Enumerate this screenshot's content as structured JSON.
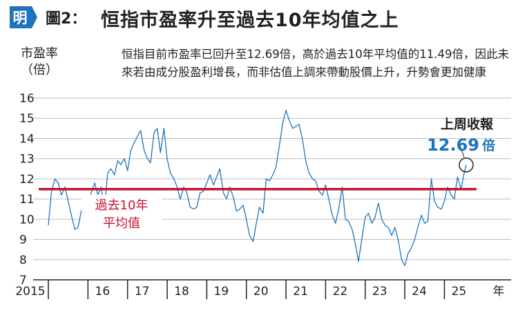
{
  "header": {
    "logo_text": "明",
    "figure_label": "圖2：",
    "title": "恒指市盈率升至過去10年均值之上",
    "accent_color": "#1d74bc"
  },
  "chart_data": {
    "type": "line",
    "ylabel": [
      "市盈率",
      "（倍）"
    ],
    "note": "恒指目前市盈率已回升至12.69倍，高於過去10年平均值的11.49倍，因此未來若由成分股盈利增長，而非估值上調來帶動股價上升，升勢會更加健康",
    "ylim": [
      7,
      16
    ],
    "yticks": [
      7,
      8,
      9,
      10,
      11,
      12,
      13,
      14,
      15,
      16
    ],
    "xlim": [
      2015,
      2026.3
    ],
    "xticks": [
      {
        "label": "2015",
        "value": 2015
      },
      {
        "label": "16",
        "value": 2016
      },
      {
        "label": "17",
        "value": 2017
      },
      {
        "label": "18",
        "value": 2018
      },
      {
        "label": "19",
        "value": 2019
      },
      {
        "label": "20",
        "value": 2020
      },
      {
        "label": "21",
        "value": 2021
      },
      {
        "label": "22",
        "value": 2022
      },
      {
        "label": "23",
        "value": 2023
      },
      {
        "label": "24",
        "value": 2024
      },
      {
        "label": "25",
        "value": 2025
      }
    ],
    "xunit": "年",
    "grid": "horizontal",
    "series_color": "#1d74bc",
    "average_line": {
      "value": 11.49,
      "label": [
        "過去10年",
        "平均值"
      ],
      "color": "#c8102e"
    },
    "latest": {
      "title": "上周收報",
      "value": "12.69",
      "unit": "倍",
      "x": 2025.55,
      "y": 12.69
    },
    "series": [
      {
        "x": [
          2015.0,
          2015.08,
          2015.17,
          2015.25,
          2015.33,
          2015.42,
          2015.5,
          2015.58,
          2015.67,
          2015.75,
          2015.83,
          2015.92,
          2016.0,
          2016.08,
          2016.17,
          2016.25,
          2016.33,
          2016.42,
          2016.5,
          2016.58,
          2016.67,
          2016.75,
          2016.83,
          2016.92,
          2017.0,
          2017.08,
          2017.17,
          2017.25,
          2017.33,
          2017.42,
          2017.5,
          2017.58,
          2017.67,
          2017.75,
          2017.83,
          2017.92,
          2018.0,
          2018.08,
          2018.17,
          2018.25,
          2018.33,
          2018.42,
          2018.5,
          2018.58,
          2018.67,
          2018.75,
          2018.83,
          2018.92,
          2019.0,
          2019.08,
          2019.17,
          2019.25,
          2019.33,
          2019.42,
          2019.5,
          2019.58,
          2019.67,
          2019.75,
          2019.83,
          2019.92,
          2020.0,
          2020.08,
          2020.17,
          2020.25,
          2020.33,
          2020.42,
          2020.5,
          2020.58,
          2020.67,
          2020.75,
          2020.83,
          2020.92,
          2021.0,
          2021.08,
          2021.17,
          2021.25,
          2021.33,
          2021.42,
          2021.5,
          2021.58,
          2021.67,
          2021.75,
          2021.83,
          2021.92,
          2022.0,
          2022.08,
          2022.17,
          2022.25,
          2022.33,
          2022.42,
          2022.5,
          2022.58,
          2022.67,
          2022.75,
          2022.83,
          2022.92,
          2023.0,
          2023.08,
          2023.17,
          2023.25,
          2023.33,
          2023.42,
          2023.5,
          2023.58,
          2023.67,
          2023.75,
          2023.83,
          2023.92,
          2024.0,
          2024.08,
          2024.17,
          2024.25,
          2024.33,
          2024.42,
          2024.5,
          2024.58,
          2024.67,
          2024.75,
          2024.83,
          2024.92,
          2025.0,
          2025.08,
          2025.17,
          2025.25,
          2025.33,
          2025.42,
          2025.5,
          2025.55
        ],
        "y": [
          9.7,
          11.4,
          12.0,
          11.8,
          11.2,
          11.6,
          10.9,
          10.2,
          9.5,
          9.6,
          10.4,
          10.8,
          10.6,
          11.3,
          11.8,
          11.2,
          11.6,
          10.6,
          12.3,
          12.5,
          12.2,
          12.9,
          12.7,
          13.0,
          12.4,
          13.4,
          13.8,
          14.1,
          14.4,
          13.4,
          13.0,
          12.8,
          14.3,
          14.5,
          13.3,
          14.5,
          13.0,
          12.3,
          12.0,
          11.6,
          11.0,
          11.6,
          11.3,
          10.6,
          10.5,
          10.6,
          11.3,
          11.4,
          11.8,
          12.2,
          11.7,
          12.1,
          12.5,
          11.3,
          11.0,
          11.6,
          11.1,
          10.4,
          10.5,
          10.7,
          10.0,
          9.2,
          8.9,
          9.8,
          10.6,
          10.3,
          12.0,
          11.9,
          12.2,
          12.6,
          13.6,
          14.8,
          15.4,
          14.9,
          14.5,
          14.6,
          14.7,
          13.9,
          12.9,
          12.3,
          12.0,
          11.9,
          11.4,
          11.2,
          11.7,
          11.0,
          10.2,
          9.8,
          10.5,
          11.6,
          10.0,
          9.9,
          9.5,
          8.8,
          7.9,
          9.1,
          10.1,
          10.3,
          9.8,
          10.1,
          10.8,
          10.0,
          9.7,
          9.6,
          9.2,
          9.6,
          9.0,
          8.0,
          7.7,
          8.3,
          8.6,
          9.0,
          9.6,
          10.2,
          9.8,
          9.9,
          12.0,
          10.9,
          10.6,
          10.5,
          10.9,
          11.6,
          11.2,
          11.0,
          12.1,
          11.5,
          12.3,
          12.69
        ]
      }
    ]
  }
}
